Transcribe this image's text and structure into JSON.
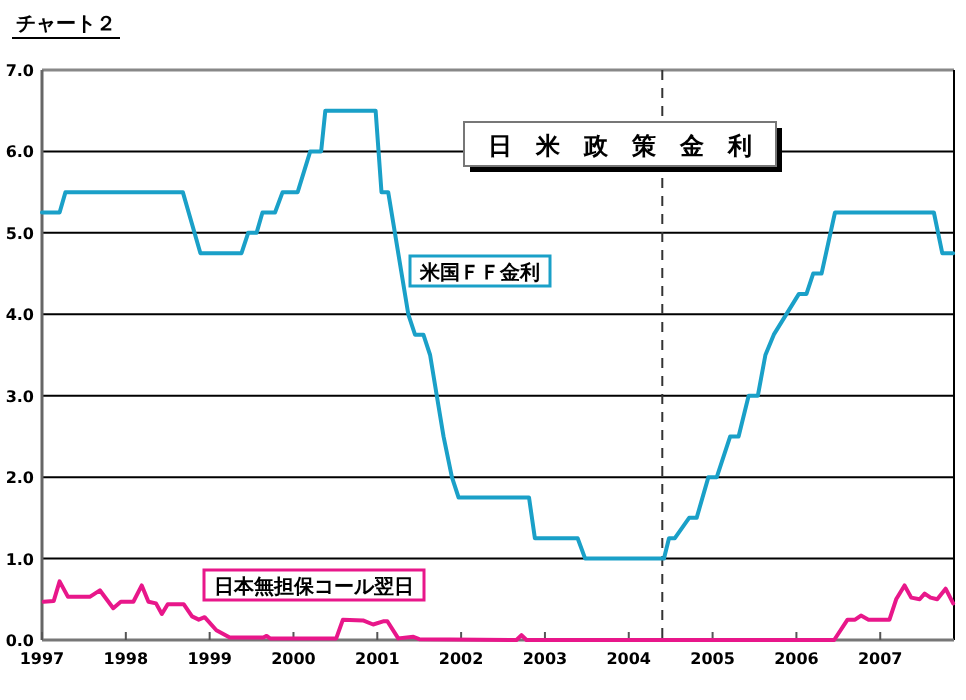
{
  "chart_data": {
    "type": "line",
    "title": "チャート２",
    "subtitle": "日米政策金利",
    "xlim": [
      1997,
      2007.88
    ],
    "xticks": [
      1997,
      1998,
      1999,
      2000,
      2001,
      2002,
      2003,
      2004,
      2005,
      2006,
      2007
    ],
    "ylim": [
      0,
      7
    ],
    "yticks": [
      {
        "value": 0,
        "label": "0.0"
      },
      {
        "value": 1,
        "label": "1.0"
      },
      {
        "value": 2,
        "label": "2.0"
      },
      {
        "value": 3,
        "label": "3.0"
      },
      {
        "value": 4,
        "label": "4.0"
      },
      {
        "value": 5,
        "label": "5.0"
      },
      {
        "value": 6,
        "label": "6.0"
      },
      {
        "value": 7,
        "label": "7.0"
      }
    ],
    "grid": "y",
    "line_style": "solid",
    "ref_lines": [
      {
        "axis": "x",
        "value": 2004.4,
        "label": null,
        "color": "#333333",
        "line_style": "dashed"
      }
    ],
    "series": [
      {
        "name": "米国ＦＦ金利",
        "color": "#1aa0c8",
        "x": [
          1997.0,
          1997.21,
          1997.28,
          1998.68,
          1998.89,
          1999.38,
          1999.46,
          1999.56,
          1999.63,
          1999.78,
          1999.87,
          2000.05,
          2000.2,
          2000.33,
          2000.38,
          2000.98,
          2001.05,
          2001.13,
          2001.37,
          2001.45,
          2001.55,
          2001.63,
          2001.71,
          2001.79,
          2001.89,
          2001.97,
          2002.81,
          2002.88,
          2003.39,
          2003.48,
          2004.42,
          2004.48,
          2004.55,
          2004.72,
          2004.81,
          2004.95,
          2005.05,
          2005.21,
          2005.31,
          2005.43,
          2005.54,
          2005.63,
          2005.73,
          2006.03,
          2006.12,
          2006.2,
          2006.3,
          2006.46,
          2007.64,
          2007.74,
          2007.87
        ],
        "values": [
          5.25,
          5.25,
          5.5,
          5.5,
          4.75,
          4.75,
          5.0,
          5.0,
          5.25,
          5.25,
          5.5,
          5.5,
          6.0,
          6.0,
          6.5,
          6.5,
          5.5,
          5.5,
          4.0,
          3.75,
          3.75,
          3.5,
          3.0,
          2.5,
          2.0,
          1.75,
          1.75,
          1.25,
          1.25,
          1.0,
          1.0,
          1.25,
          1.25,
          1.5,
          1.5,
          2.0,
          2.0,
          2.5,
          2.5,
          3.0,
          3.0,
          3.5,
          3.75,
          4.25,
          4.25,
          4.5,
          4.5,
          5.25,
          5.25,
          4.75,
          4.75
        ]
      },
      {
        "name": "日本無担保コール翌日",
        "color": "#e8178a",
        "x": [
          1997.02,
          1997.14,
          1997.21,
          1997.31,
          1997.57,
          1997.69,
          1997.85,
          1997.94,
          1998.09,
          1998.19,
          1998.27,
          1998.36,
          1998.43,
          1998.5,
          1998.69,
          1998.79,
          1998.87,
          1998.94,
          1999.08,
          1999.24,
          1999.64,
          1999.68,
          1999.72,
          2000.51,
          2000.59,
          2000.83,
          2000.95,
          2001.07,
          2001.12,
          2001.25,
          2001.43,
          2001.5,
          2002.66,
          2002.72,
          2002.78,
          2006.45,
          2006.61,
          2006.7,
          2006.77,
          2006.86,
          2007.11,
          2007.19,
          2007.29,
          2007.37,
          2007.47,
          2007.53,
          2007.6,
          2007.68,
          2007.78,
          2007.87
        ],
        "values": [
          0.47,
          0.48,
          0.72,
          0.53,
          0.53,
          0.61,
          0.39,
          0.47,
          0.47,
          0.67,
          0.47,
          0.45,
          0.32,
          0.44,
          0.44,
          0.29,
          0.25,
          0.28,
          0.12,
          0.03,
          0.03,
          0.05,
          0.02,
          0.02,
          0.25,
          0.24,
          0.19,
          0.23,
          0.23,
          0.02,
          0.04,
          0.01,
          0.0,
          0.06,
          0.0,
          0.0,
          0.25,
          0.25,
          0.3,
          0.25,
          0.25,
          0.5,
          0.67,
          0.52,
          0.5,
          0.57,
          0.52,
          0.5,
          0.63,
          0.45
        ]
      }
    ]
  }
}
